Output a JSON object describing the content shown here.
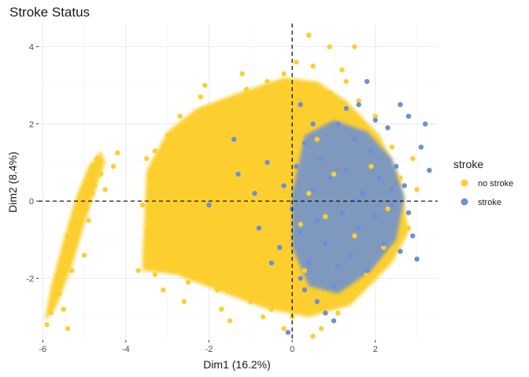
{
  "chart_data": {
    "type": "scatter",
    "title": "Stroke Status",
    "xlabel": "Dim1 (16.2%)",
    "ylabel": "Dim2 (8.4%)",
    "xlim": [
      -6.1,
      3.5
    ],
    "ylim": [
      -3.6,
      4.6
    ],
    "x_ticks": [
      -6,
      -4,
      -2,
      0,
      2
    ],
    "y_ticks": [
      -2,
      0,
      2,
      4
    ],
    "grid": true,
    "reference_lines": {
      "x": 0,
      "y": 0
    },
    "legend": {
      "title": "stroke",
      "position": "right"
    },
    "series": [
      {
        "name": "no stroke",
        "color": "#FCCF2E",
        "points": [
          [
            -5.9,
            -3.2
          ],
          [
            -5.8,
            -2.9
          ],
          [
            -5.7,
            -2.5
          ],
          [
            -5.6,
            -2.0
          ],
          [
            -5.5,
            -1.6
          ],
          [
            -5.45,
            -1.2
          ],
          [
            -5.4,
            -0.9
          ],
          [
            -5.3,
            -0.6
          ],
          [
            -5.2,
            -0.3
          ],
          [
            -5.1,
            0.0
          ],
          [
            -5.0,
            0.3
          ],
          [
            -4.9,
            0.6
          ],
          [
            -4.8,
            0.9
          ],
          [
            -4.7,
            1.1
          ],
          [
            -4.6,
            0.7
          ],
          [
            -4.8,
            0.2
          ],
          [
            -5.2,
            -1.0
          ],
          [
            -5.6,
            -2.4
          ],
          [
            -5.4,
            -3.3
          ],
          [
            -4.9,
            -0.5
          ],
          [
            -5.3,
            -1.8
          ],
          [
            -5.0,
            -1.4
          ],
          [
            -4.5,
            0.3
          ],
          [
            -4.2,
            1.25
          ],
          [
            -4.3,
            0.9
          ],
          [
            -5.5,
            -2.8
          ],
          [
            -5.15,
            -0.8
          ],
          [
            -4.95,
            -0.2
          ],
          [
            -5.35,
            -1.3
          ],
          [
            -4.75,
            0.4
          ],
          [
            -3.5,
            -1.4
          ],
          [
            -3.4,
            0.2
          ],
          [
            -3.3,
            1.3
          ],
          [
            -3.2,
            -0.5
          ],
          [
            -3.0,
            1.7
          ],
          [
            -2.9,
            -1.8
          ],
          [
            -2.7,
            2.2
          ],
          [
            -2.5,
            -2.1
          ],
          [
            -2.3,
            1.0
          ],
          [
            -2.2,
            -0.8
          ],
          [
            -2.0,
            2.4
          ],
          [
            -1.8,
            -2.3
          ],
          [
            -1.6,
            0.5
          ],
          [
            -1.5,
            2.6
          ],
          [
            -1.3,
            -1.5
          ],
          [
            -1.1,
            2.9
          ],
          [
            -1.0,
            -2.6
          ],
          [
            -0.8,
            1.5
          ],
          [
            -0.6,
            3.1
          ],
          [
            -0.5,
            -2.8
          ],
          [
            -0.4,
            0.9
          ],
          [
            -0.2,
            3.3
          ],
          [
            0.0,
            -3.0
          ],
          [
            0.1,
            3.6
          ],
          [
            0.3,
            -1.8
          ],
          [
            0.5,
            3.5
          ],
          [
            0.7,
            -3.3
          ],
          [
            0.9,
            2.8
          ],
          [
            1.1,
            -2.9
          ],
          [
            1.2,
            3.4
          ],
          [
            1.4,
            -2.5
          ],
          [
            1.6,
            2.6
          ],
          [
            1.8,
            -1.9
          ],
          [
            2.0,
            2.2
          ],
          [
            2.2,
            -1.2
          ],
          [
            2.4,
            1.4
          ],
          [
            2.6,
            0.6
          ],
          [
            2.8,
            -0.7
          ],
          [
            3.0,
            0.3
          ],
          [
            -2.8,
            0.4
          ],
          [
            -2.4,
            -1.3
          ],
          [
            -1.9,
            1.8
          ],
          [
            -1.4,
            -0.2
          ],
          [
            -0.9,
            -1.0
          ],
          [
            -0.3,
            2.0
          ],
          [
            0.2,
            -0.6
          ],
          [
            0.6,
            1.6
          ],
          [
            1.0,
            0.7
          ],
          [
            1.5,
            -0.9
          ],
          [
            -3.1,
            -2.3
          ],
          [
            -2.6,
            -2.6
          ],
          [
            -1.7,
            -2.8
          ],
          [
            -0.7,
            -3.0
          ],
          [
            -3.6,
            -0.1
          ],
          [
            -3.3,
            -1.9
          ],
          [
            -2.1,
            3.0
          ],
          [
            -1.2,
            3.3
          ],
          [
            0.4,
            4.3
          ],
          [
            0.9,
            4.0
          ],
          [
            1.5,
            4.0
          ],
          [
            -2.5,
            0.9
          ],
          [
            -1.6,
            -1.6
          ],
          [
            -0.1,
            1.4
          ],
          [
            0.4,
            0.2
          ],
          [
            -3.0,
            0.8
          ],
          [
            -2.0,
            -0.3
          ],
          [
            -1.0,
            0.3
          ],
          [
            -0.4,
            -1.9
          ],
          [
            0.8,
            -0.4
          ],
          [
            1.9,
            0.9
          ],
          [
            -1.5,
            -3.1
          ],
          [
            -0.2,
            -3.3
          ],
          [
            0.5,
            -3.5
          ],
          [
            2.3,
            -0.2
          ],
          [
            2.9,
            1.1
          ],
          [
            -3.7,
            -1.8
          ],
          [
            -3.5,
            1.1
          ],
          [
            -2.2,
            2.7
          ],
          [
            -0.8,
            -2.4
          ],
          [
            1.3,
            3.1
          ]
        ]
      },
      {
        "name": "stroke",
        "color": "#6B8FD8",
        "points": [
          [
            -2.0,
            -0.1
          ],
          [
            -1.4,
            1.6
          ],
          [
            -1.3,
            0.7
          ],
          [
            -0.9,
            0.2
          ],
          [
            -0.6,
            1.0
          ],
          [
            -0.3,
            -1.2
          ],
          [
            -0.2,
            0.4
          ],
          [
            0.0,
            -0.2
          ],
          [
            0.1,
            0.9
          ],
          [
            0.2,
            -0.8
          ],
          [
            0.3,
            1.5
          ],
          [
            0.4,
            -1.6
          ],
          [
            0.5,
            0.3
          ],
          [
            0.6,
            -0.5
          ],
          [
            0.7,
            1.1
          ],
          [
            0.8,
            -1.1
          ],
          [
            0.9,
            0.6
          ],
          [
            1.0,
            -2.2
          ],
          [
            1.1,
            2.0
          ],
          [
            1.2,
            -0.3
          ],
          [
            1.3,
            0.8
          ],
          [
            1.4,
            -1.4
          ],
          [
            1.5,
            1.6
          ],
          [
            1.6,
            -0.7
          ],
          [
            1.7,
            0.2
          ],
          [
            1.8,
            -1.8
          ],
          [
            1.9,
            1.3
          ],
          [
            2.0,
            -0.4
          ],
          [
            2.1,
            0.6
          ],
          [
            2.2,
            -1.1
          ],
          [
            2.3,
            1.9
          ],
          [
            2.4,
            -0.1
          ],
          [
            2.5,
            0.9
          ],
          [
            2.6,
            -1.3
          ],
          [
            2.7,
            0.4
          ],
          [
            2.8,
            2.2
          ],
          [
            2.9,
            -0.9
          ],
          [
            3.0,
            -1.5
          ],
          [
            3.1,
            1.4
          ],
          [
            3.3,
            0.8
          ],
          [
            0.6,
            -2.6
          ],
          [
            0.8,
            -2.9
          ],
          [
            1.0,
            -3.1
          ],
          [
            0.2,
            -2.0
          ],
          [
            -0.1,
            -3.4
          ],
          [
            1.6,
            2.5
          ],
          [
            2.0,
            2.1
          ],
          [
            2.6,
            2.5
          ],
          [
            3.2,
            2.0
          ],
          [
            1.8,
            3.1
          ],
          [
            0.5,
            2.0
          ],
          [
            0.2,
            2.5
          ],
          [
            1.3,
            2.4
          ],
          [
            -0.8,
            -0.7
          ],
          [
            -0.5,
            -1.6
          ],
          [
            0.3,
            -2.3
          ],
          [
            1.1,
            -1.7
          ],
          [
            1.5,
            0.0
          ],
          [
            2.4,
            0.3
          ],
          [
            2.8,
            -0.3
          ]
        ]
      }
    ]
  }
}
